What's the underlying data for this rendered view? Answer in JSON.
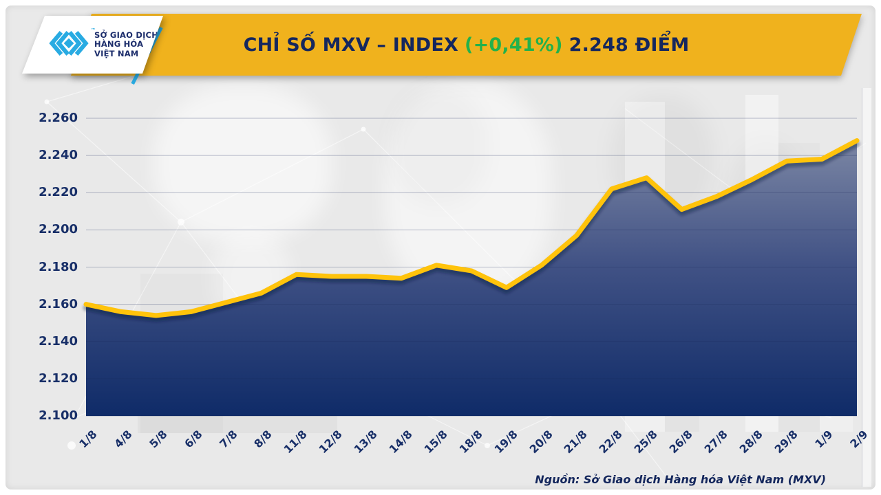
{
  "header": {
    "logo": {
      "org_lines": [
        "SỞ GIAO DỊCH",
        "HÀNG HÓA",
        "VIỆT NAM"
      ],
      "trademark": "™",
      "brand_color": "#29ABE2"
    },
    "title": {
      "part1": "CHỈ SỐ MXV – INDEX",
      "change": "(+0,41%)",
      "part2": "2.248 ĐIỂM"
    },
    "banner_color": "#F0B21D",
    "title_color": "#15275E",
    "change_color": "#22B14C"
  },
  "chart_data": {
    "type": "area",
    "title": "CHỈ SỐ MXV – INDEX (+0,41%) 2.248 ĐIỂM",
    "categories": [
      "1/8",
      "4/8",
      "5/8",
      "6/8",
      "7/8",
      "8/8",
      "11/8",
      "12/8",
      "13/8",
      "14/8",
      "15/8",
      "18/8",
      "19/8",
      "20/8",
      "21/8",
      "22/8",
      "25/8",
      "26/8",
      "27/8",
      "28/8",
      "29/8",
      "1/9",
      "2/9"
    ],
    "values": [
      2160,
      2156,
      2154,
      2156,
      2161,
      2166,
      2176,
      2175,
      2175,
      2174,
      2181,
      2178,
      2169,
      2181,
      2197,
      2222,
      2228,
      2211,
      2218,
      2227,
      2237,
      2238,
      2248
    ],
    "ylim": [
      2100,
      2260
    ],
    "ytick_step": 20,
    "ytick_labels": [
      "2.100",
      "2.120",
      "2.140",
      "2.160",
      "2.180",
      "2.200",
      "2.220",
      "2.240",
      "2.260"
    ],
    "xlabel": "",
    "ylabel": "",
    "grid": true,
    "legend": false,
    "line_color": "#FFC30B",
    "fill_gradient": [
      "#7B86A4",
      "#415285",
      "#0F2B68"
    ],
    "grid_color": "rgba(26,42,92,0.30)",
    "axis_text_color": "#182F68"
  },
  "footer": {
    "source": "Nguồn: Sở Giao dịch Hàng hóa Việt Nam (MXV)"
  }
}
